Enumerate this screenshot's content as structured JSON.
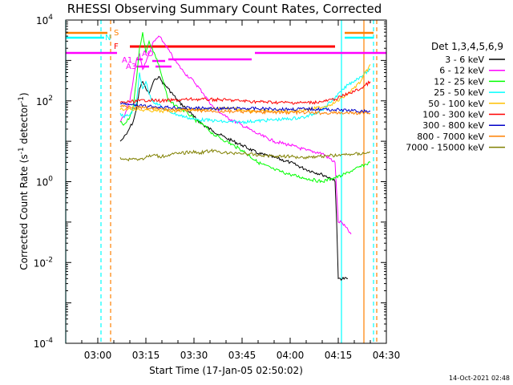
{
  "chart_data": {
    "type": "line",
    "title": "RHESSI Observing Summary Count Rates, Corrected",
    "xlabel": "Start Time (17-Jan-05 02:50:02)",
    "ylabel": "Corrected Count Rate (s⁻¹ detector⁻¹)",
    "ylabel_parts": [
      "Corrected Count Rate (s",
      "-1",
      " detector",
      "-1",
      ")"
    ],
    "y_scale": "log",
    "ylim": [
      0.0001,
      10000
    ],
    "xlim": [
      "02:50",
      "04:30"
    ],
    "x_ticks": [
      "03:00",
      "03:15",
      "03:30",
      "03:45",
      "04:00",
      "04:15",
      "04:30"
    ],
    "y_ticks": [
      {
        "mant": "10",
        "exp": "-4",
        "v": 0.0001
      },
      {
        "mant": "10",
        "exp": "-2",
        "v": 0.01
      },
      {
        "mant": "10",
        "exp": "0",
        "v": 1
      },
      {
        "mant": "10",
        "exp": "2",
        "v": 100
      },
      {
        "mant": "10",
        "exp": "4",
        "v": 10000
      }
    ],
    "legend_title": "Det 1,3,4,5,6,9",
    "legend_position": "right",
    "timestamp": "14-Oct-2021 02:48",
    "flags": [
      "S",
      "N",
      "F",
      "AO",
      "A1",
      "A3"
    ],
    "flag_bars": [
      {
        "name": "S",
        "color": "#ff8000",
        "segments": [
          [
            "02:50",
            "03:03"
          ],
          [
            "04:17",
            "04:26"
          ]
        ]
      },
      {
        "name": "N",
        "color": "#00ffff",
        "segments": [
          [
            "02:50",
            "03:02"
          ],
          [
            "04:17",
            "04:26"
          ]
        ]
      },
      {
        "name": "F",
        "color": "#ff0000",
        "segments": [
          [
            "03:10",
            "04:14"
          ]
        ]
      },
      {
        "name": "AO",
        "color": "#ff00ff",
        "segments": [
          [
            "03:17",
            "03:21"
          ]
        ]
      },
      {
        "name": "A1",
        "color": "#ff00ff",
        "segments": [
          [
            "03:12",
            "03:14"
          ],
          [
            "03:22",
            "03:48"
          ]
        ]
      },
      {
        "name": "A3",
        "color": "#ff00ff",
        "segments": [
          [
            "03:12",
            "03:16"
          ],
          [
            "03:18",
            "03:23"
          ]
        ]
      },
      {
        "name": "band",
        "color": "#ff00ff",
        "segments": [
          [
            "02:50",
            "03:06"
          ],
          [
            "03:49",
            "04:30"
          ]
        ]
      }
    ],
    "vlines": [
      {
        "t": "02:50",
        "color": "#00ffff",
        "dash": false
      },
      {
        "t": "03:01",
        "color": "#00ffff",
        "dash": true
      },
      {
        "t": "03:04",
        "color": "#ff8000",
        "dash": true
      },
      {
        "t": "04:16",
        "color": "#00ffff",
        "dash": false
      },
      {
        "t": "04:23",
        "color": "#ff8000",
        "dash": false
      },
      {
        "t": "04:26",
        "color": "#00ffff",
        "dash": true
      },
      {
        "t": "04:27",
        "color": "#ff8000",
        "dash": true
      }
    ],
    "series": [
      {
        "name": "3 - 6 keV",
        "color": "#000000",
        "points": [
          [
            "03:07",
            10
          ],
          [
            "03:08",
            12
          ],
          [
            "03:09",
            15
          ],
          [
            "03:10",
            22
          ],
          [
            "03:11",
            30
          ],
          [
            "03:12",
            60
          ],
          [
            "03:13",
            200
          ],
          [
            "03:14",
            300
          ],
          [
            "03:15",
            200
          ],
          [
            "03:16",
            150
          ],
          [
            "03:17",
            250
          ],
          [
            "03:18",
            350
          ],
          [
            "03:19",
            400
          ],
          [
            "03:20",
            300
          ],
          [
            "03:22",
            200
          ],
          [
            "03:25",
            100
          ],
          [
            "03:28",
            60
          ],
          [
            "03:30",
            40
          ],
          [
            "03:33",
            25
          ],
          [
            "03:36",
            18
          ],
          [
            "03:40",
            12
          ],
          [
            "03:45",
            8
          ],
          [
            "03:50",
            5
          ],
          [
            "03:55",
            4
          ],
          [
            "04:00",
            3
          ],
          [
            "04:05",
            2
          ],
          [
            "04:10",
            1.5
          ],
          [
            "04:13",
            1.2
          ],
          [
            "04:14",
            1.0
          ],
          [
            "04:14.5",
            0.1
          ],
          [
            "04:15",
            0.004
          ],
          [
            "04:18",
            0.004
          ]
        ]
      },
      {
        "name": "6 - 12 keV",
        "color": "#ff00ff",
        "points": [
          [
            "03:07",
            30
          ],
          [
            "03:08",
            40
          ],
          [
            "03:09",
            60
          ],
          [
            "03:10",
            100
          ],
          [
            "03:11",
            300
          ],
          [
            "03:12",
            1000
          ],
          [
            "03:13",
            1500
          ],
          [
            "03:14",
            600
          ],
          [
            "03:15",
            900
          ],
          [
            "03:16",
            1500
          ],
          [
            "03:17",
            2500
          ],
          [
            "03:19",
            4000
          ],
          [
            "03:21",
            2500
          ],
          [
            "03:24",
            1000
          ],
          [
            "03:27",
            500
          ],
          [
            "03:30",
            300
          ],
          [
            "03:33",
            150
          ],
          [
            "03:36",
            70
          ],
          [
            "03:40",
            40
          ],
          [
            "03:45",
            25
          ],
          [
            "03:50",
            15
          ],
          [
            "03:55",
            10
          ],
          [
            "04:00",
            8
          ],
          [
            "04:05",
            6
          ],
          [
            "04:10",
            5
          ],
          [
            "04:14",
            3
          ],
          [
            "04:15",
            0.1
          ],
          [
            "04:16",
            0.1
          ],
          [
            "04:19",
            0.05
          ]
        ]
      },
      {
        "name": "12 - 25 keV",
        "color": "#00ff00",
        "points": [
          [
            "03:07",
            30
          ],
          [
            "03:08",
            25
          ],
          [
            "03:09",
            30
          ],
          [
            "03:10",
            40
          ],
          [
            "03:11",
            70
          ],
          [
            "03:12",
            300
          ],
          [
            "03:13",
            2000
          ],
          [
            "03:14",
            5000
          ],
          [
            "03:15",
            1500
          ],
          [
            "03:16",
            3000
          ],
          [
            "03:17",
            2000
          ],
          [
            "03:19",
            800
          ],
          [
            "03:20",
            400
          ],
          [
            "03:21",
            200
          ],
          [
            "03:22",
            100
          ],
          [
            "03:25",
            70
          ],
          [
            "03:28",
            50
          ],
          [
            "03:30",
            35
          ],
          [
            "03:33",
            25
          ],
          [
            "03:36",
            15
          ],
          [
            "03:40",
            10
          ],
          [
            "03:45",
            6
          ],
          [
            "03:50",
            3
          ],
          [
            "03:55",
            2
          ],
          [
            "04:00",
            1.5
          ],
          [
            "04:05",
            1.2
          ],
          [
            "04:10",
            1.0
          ],
          [
            "04:13",
            1.2
          ],
          [
            "04:16",
            1.4
          ],
          [
            "04:20",
            2
          ],
          [
            "04:25",
            3
          ]
        ]
      },
      {
        "name": "25 - 50 keV",
        "color": "#00ffff",
        "points": [
          [
            "03:07",
            50
          ],
          [
            "03:08",
            40
          ],
          [
            "03:10",
            45
          ],
          [
            "03:12",
            80
          ],
          [
            "03:13",
            500
          ],
          [
            "03:14",
            200
          ],
          [
            "03:15",
            300
          ],
          [
            "03:16",
            150
          ],
          [
            "03:17",
            100
          ],
          [
            "03:19",
            80
          ],
          [
            "03:21",
            60
          ],
          [
            "03:25",
            45
          ],
          [
            "03:30",
            35
          ],
          [
            "03:35",
            33
          ],
          [
            "03:40",
            30
          ],
          [
            "03:45",
            30
          ],
          [
            "03:50",
            32
          ],
          [
            "03:55",
            34
          ],
          [
            "04:00",
            36
          ],
          [
            "04:05",
            40
          ],
          [
            "04:10",
            60
          ],
          [
            "04:14",
            120
          ],
          [
            "04:18",
            250
          ],
          [
            "04:22",
            400
          ],
          [
            "04:25",
            600
          ]
        ]
      },
      {
        "name": "50 - 100 keV",
        "color": "#ffc000",
        "points": [
          [
            "03:07",
            60
          ],
          [
            "03:10",
            65
          ],
          [
            "03:13",
            60
          ],
          [
            "03:16",
            58
          ],
          [
            "03:20",
            55
          ],
          [
            "03:25",
            58
          ],
          [
            "03:30",
            60
          ],
          [
            "03:35",
            62
          ],
          [
            "03:40",
            65
          ],
          [
            "03:45",
            60
          ],
          [
            "03:50",
            55
          ],
          [
            "03:55",
            55
          ],
          [
            "04:00",
            55
          ],
          [
            "04:05",
            60
          ],
          [
            "04:10",
            70
          ],
          [
            "04:14",
            90
          ],
          [
            "04:18",
            150
          ],
          [
            "04:22",
            300
          ],
          [
            "04:25",
            800
          ]
        ]
      },
      {
        "name": "100 - 300 keV",
        "color": "#ff0000",
        "points": [
          [
            "03:07",
            90
          ],
          [
            "03:10",
            95
          ],
          [
            "03:13",
            100
          ],
          [
            "03:16",
            105
          ],
          [
            "03:20",
            100
          ],
          [
            "03:25",
            105
          ],
          [
            "03:30",
            110
          ],
          [
            "03:35",
            108
          ],
          [
            "03:40",
            105
          ],
          [
            "03:45",
            100
          ],
          [
            "03:50",
            95
          ],
          [
            "03:55",
            92
          ],
          [
            "04:00",
            90
          ],
          [
            "04:05",
            90
          ],
          [
            "04:10",
            95
          ],
          [
            "04:14",
            110
          ],
          [
            "04:18",
            150
          ],
          [
            "04:22",
            200
          ],
          [
            "04:25",
            300
          ]
        ]
      },
      {
        "name": "300 - 800 keV",
        "color": "#0000c8",
        "points": [
          [
            "03:07",
            85
          ],
          [
            "03:10",
            80
          ],
          [
            "03:13",
            75
          ],
          [
            "03:16",
            72
          ],
          [
            "03:20",
            70
          ],
          [
            "03:25",
            68
          ],
          [
            "03:30",
            66
          ],
          [
            "03:35",
            65
          ],
          [
            "03:40",
            64
          ],
          [
            "03:45",
            65
          ],
          [
            "03:50",
            64
          ],
          [
            "03:55",
            63
          ],
          [
            "04:00",
            62
          ],
          [
            "04:05",
            63
          ],
          [
            "04:10",
            62
          ],
          [
            "04:14",
            60
          ],
          [
            "04:18",
            58
          ],
          [
            "04:22",
            55
          ],
          [
            "04:25",
            55
          ]
        ]
      },
      {
        "name": "800 - 7000 keV",
        "color": "#ff8000",
        "points": [
          [
            "03:07",
            75
          ],
          [
            "03:10",
            72
          ],
          [
            "03:13",
            68
          ],
          [
            "03:16",
            65
          ],
          [
            "03:20",
            62
          ],
          [
            "03:25",
            60
          ],
          [
            "03:30",
            58
          ],
          [
            "03:35",
            56
          ],
          [
            "03:40",
            55
          ],
          [
            "03:45",
            54
          ],
          [
            "03:50",
            53
          ],
          [
            "03:55",
            52
          ],
          [
            "04:00",
            52
          ],
          [
            "04:05",
            51
          ],
          [
            "04:10",
            50
          ],
          [
            "04:14",
            50
          ],
          [
            "04:18",
            50
          ],
          [
            "04:22",
            50
          ],
          [
            "04:25",
            50
          ]
        ]
      },
      {
        "name": "7000 - 15000 keV",
        "color": "#808000",
        "points": [
          [
            "03:07",
            4
          ],
          [
            "03:09",
            3.5
          ],
          [
            "03:11",
            3.8
          ],
          [
            "03:13",
            3.5
          ],
          [
            "03:15",
            4
          ],
          [
            "03:17",
            4.5
          ],
          [
            "03:20",
            4.2
          ],
          [
            "03:23",
            4.8
          ],
          [
            "03:26",
            5
          ],
          [
            "03:29",
            5.5
          ],
          [
            "03:32",
            5.2
          ],
          [
            "03:35",
            5.8
          ],
          [
            "03:38",
            5.5
          ],
          [
            "03:41",
            5
          ],
          [
            "03:44",
            5.2
          ],
          [
            "03:47",
            4.8
          ],
          [
            "03:50",
            4.5
          ],
          [
            "03:53",
            4.4
          ],
          [
            "03:56",
            4.3
          ],
          [
            "04:00",
            4.2
          ],
          [
            "04:04",
            4
          ],
          [
            "04:08",
            4.2
          ],
          [
            "04:12",
            4.4
          ],
          [
            "04:15",
            4.5
          ],
          [
            "04:19",
            4.8
          ],
          [
            "04:23",
            5
          ],
          [
            "04:25",
            5.5
          ]
        ]
      }
    ]
  }
}
